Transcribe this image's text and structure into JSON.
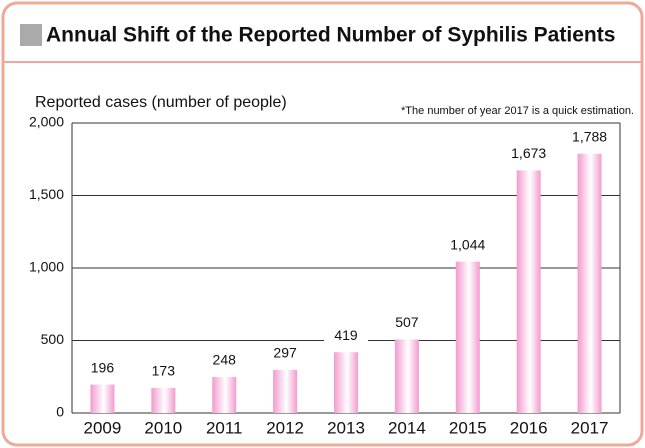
{
  "chart_data": {
    "type": "bar",
    "title": "Annual Shift of the Reported Number of Syphilis Patients",
    "y_label": "Reported cases (number of people)",
    "note": "*The number of year 2017 is a quick estimation.",
    "categories": [
      "2009",
      "2010",
      "2011",
      "2012",
      "2013",
      "2014",
      "2015",
      "2016",
      "2017"
    ],
    "values": [
      196,
      173,
      248,
      297,
      419,
      507,
      1044,
      1673,
      1788
    ],
    "value_labels": [
      "196",
      "173",
      "248",
      "297",
      "419",
      "507",
      "1,044",
      "1,673",
      "1,788"
    ],
    "color": "#f29bcf",
    "ylim": [
      0,
      2000
    ],
    "yticks": [
      0,
      500,
      {
        "value": 1000,
        "label": "1,000"
      },
      {
        "value": 1500,
        "label": "1,500"
      },
      {
        "value": 2000,
        "label": "2,000"
      }
    ],
    "grid": true
  }
}
